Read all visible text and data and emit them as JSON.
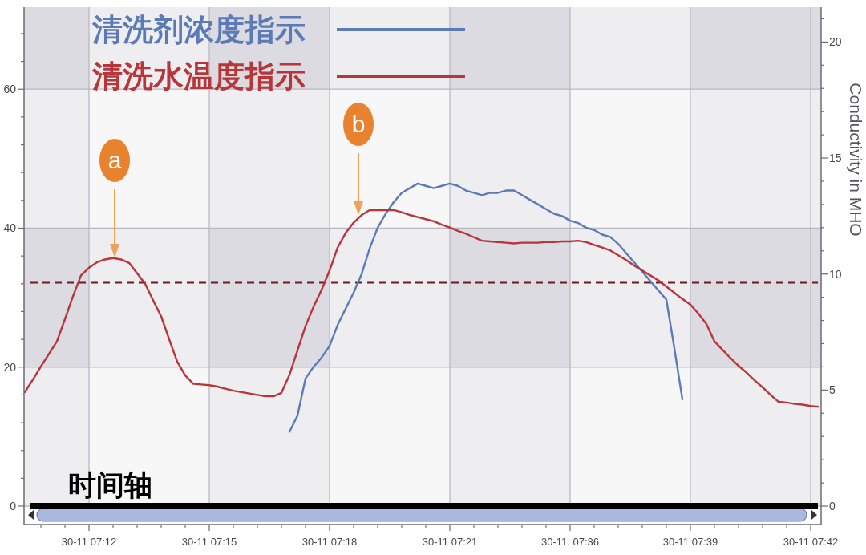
{
  "chart_data": {
    "type": "line",
    "categories": [
      null,
      null,
      null,
      null,
      null,
      null,
      null,
      null,
      "30-11 07:12",
      null,
      null,
      null,
      null,
      null,
      null,
      null,
      null,
      null,
      null,
      null,
      null,
      null,
      null,
      "30-11 07:15",
      null,
      null,
      null,
      null,
      null,
      null,
      null,
      null,
      null,
      null,
      null,
      null,
      null,
      null,
      "30-11 07:18",
      null,
      null,
      null,
      null,
      null,
      null,
      null,
      null,
      null,
      null,
      null,
      null,
      null,
      null,
      "30-11 07:21",
      null,
      null,
      null,
      null,
      null,
      null,
      null,
      null,
      null,
      null,
      null,
      null,
      null,
      null,
      "30-11. 07:36",
      null,
      null,
      null,
      null,
      null,
      null,
      null,
      null,
      null,
      null,
      null,
      null,
      null,
      null,
      "30-11 07:39",
      null,
      null,
      null,
      null,
      null,
      null,
      null,
      null,
      null,
      null,
      null,
      null,
      null,
      null,
      "30-11 07:42",
      null
    ],
    "series": [
      {
        "name": "清洗剂浓度指示",
        "color": "#5b7bb6",
        "axis": "y2",
        "values": [
          null,
          null,
          null,
          null,
          null,
          null,
          null,
          null,
          null,
          null,
          null,
          null,
          null,
          null,
          null,
          null,
          null,
          null,
          null,
          null,
          null,
          null,
          null,
          null,
          null,
          null,
          null,
          null,
          null,
          null,
          null,
          null,
          null,
          3.2,
          3.9,
          5.5,
          6.0,
          6.4,
          6.9,
          7.8,
          8.5,
          9.2,
          10.0,
          11.1,
          12.0,
          12.6,
          13.1,
          13.5,
          13.7,
          13.9,
          13.8,
          13.7,
          13.8,
          13.9,
          13.8,
          13.6,
          13.5,
          13.4,
          13.5,
          13.5,
          13.6,
          13.6,
          13.4,
          13.2,
          13.0,
          12.8,
          12.6,
          12.5,
          12.3,
          12.2,
          12.0,
          11.9,
          11.7,
          11.6,
          11.3,
          10.9,
          10.5,
          10.1,
          9.7,
          9.3,
          8.9,
          6.8,
          4.6,
          null,
          null,
          null,
          null,
          null,
          null,
          null,
          null,
          null,
          null,
          null,
          null,
          null,
          null,
          null,
          null,
          null
        ]
      },
      {
        "name": "清洗水温度指示",
        "color": "#b8353a",
        "values": [
          16.4,
          18.2,
          20.1,
          21.9,
          23.7,
          26.9,
          30.2,
          33.2,
          34.3,
          35.1,
          35.5,
          35.7,
          35.5,
          35.0,
          33.5,
          32.0,
          29.6,
          27.3,
          24.0,
          20.8,
          18.8,
          17.6,
          17.5,
          17.4,
          17.2,
          16.9,
          16.6,
          16.4,
          16.2,
          16.0,
          15.8,
          15.8,
          16.3,
          18.9,
          22.4,
          25.9,
          28.7,
          31.1,
          33.9,
          37.2,
          39.3,
          40.8,
          41.9,
          42.6,
          42.6,
          42.6,
          42.6,
          42.3,
          41.9,
          41.6,
          41.3,
          41.0,
          40.5,
          40.1,
          39.6,
          39.2,
          38.7,
          38.2,
          38.1,
          38.0,
          37.9,
          37.8,
          37.9,
          37.9,
          37.9,
          38.0,
          38.0,
          38.1,
          38.1,
          38.2,
          38.0,
          37.6,
          37.2,
          36.8,
          36.1,
          35.4,
          34.6,
          33.9,
          33.2,
          32.5,
          31.6,
          30.7,
          29.8,
          29.0,
          27.7,
          26.2,
          23.7,
          22.5,
          21.3,
          20.2,
          19.2,
          18.1,
          17.1,
          16.0,
          15.0,
          14.9,
          14.7,
          14.6,
          14.4,
          14.3
        ]
      }
    ],
    "y2label": "Conductivity in MHO",
    "ylim": [
      0,
      71.8
    ],
    "yticks": [
      0,
      20,
      40,
      60,
      {
        "value": 4,
        "label": null
      },
      {
        "value": 8,
        "label": null
      },
      {
        "value": 12,
        "label": null
      },
      {
        "value": 16,
        "label": null
      },
      {
        "value": 24,
        "label": null
      },
      {
        "value": 28,
        "label": null
      },
      {
        "value": 32,
        "label": null
      },
      {
        "value": 36,
        "label": null
      },
      {
        "value": 44,
        "label": null
      },
      {
        "value": 48,
        "label": null
      },
      {
        "value": 52,
        "label": null
      },
      {
        "value": 56,
        "label": null
      },
      {
        "value": 64,
        "label": null
      },
      {
        "value": 68,
        "label": null
      }
    ],
    "y2lim": [
      0,
      21.5
    ],
    "y2ticks": [
      0,
      5,
      10,
      15,
      20,
      {
        "value": 1,
        "label": null
      },
      {
        "value": 2,
        "label": null
      },
      {
        "value": 3,
        "label": null
      },
      {
        "value": 4,
        "label": null
      },
      {
        "value": 6,
        "label": null
      },
      {
        "value": 7,
        "label": null
      },
      {
        "value": 8,
        "label": null
      },
      {
        "value": 9,
        "label": null
      },
      {
        "value": 11,
        "label": null
      },
      {
        "value": 12,
        "label": null
      },
      {
        "value": 13,
        "label": null
      },
      {
        "value": 14,
        "label": null
      },
      {
        "value": 16,
        "label": null
      },
      {
        "value": 17,
        "label": null
      },
      {
        "value": 18,
        "label": null
      },
      {
        "value": 19,
        "label": null
      },
      {
        "value": 21,
        "label": null
      }
    ],
    "bands": [
      {
        "axis": "x",
        "from": "30-11 07:12",
        "to": "30-11 07:15",
        "color": "#ffffff"
      },
      {
        "axis": "x",
        "from": "30-11 07:18",
        "to": "30-11 07:21",
        "color": "#ffffff"
      },
      {
        "axis": "x",
        "from": "30-11. 07:36",
        "to": "30-11 07:39",
        "color": "#ffffff"
      },
      {
        "axis": "y",
        "from": 0,
        "to": 20,
        "color": "#ffffff"
      },
      {
        "axis": "y",
        "from": 40,
        "to": 60,
        "color": "#ffffff"
      }
    ],
    "ref_lines": [
      {
        "axis": "y",
        "value": 32.2,
        "color": "#6e1b1b",
        "line_style": "dashed"
      },
      {
        "axis": "y",
        "value": 0,
        "label": "时间轴",
        "color": "#000000",
        "line_style": "solid"
      }
    ],
    "annotations": [
      "a",
      "b"
    ],
    "grid": true,
    "legend": "top left",
    "line_style": "solid"
  }
}
